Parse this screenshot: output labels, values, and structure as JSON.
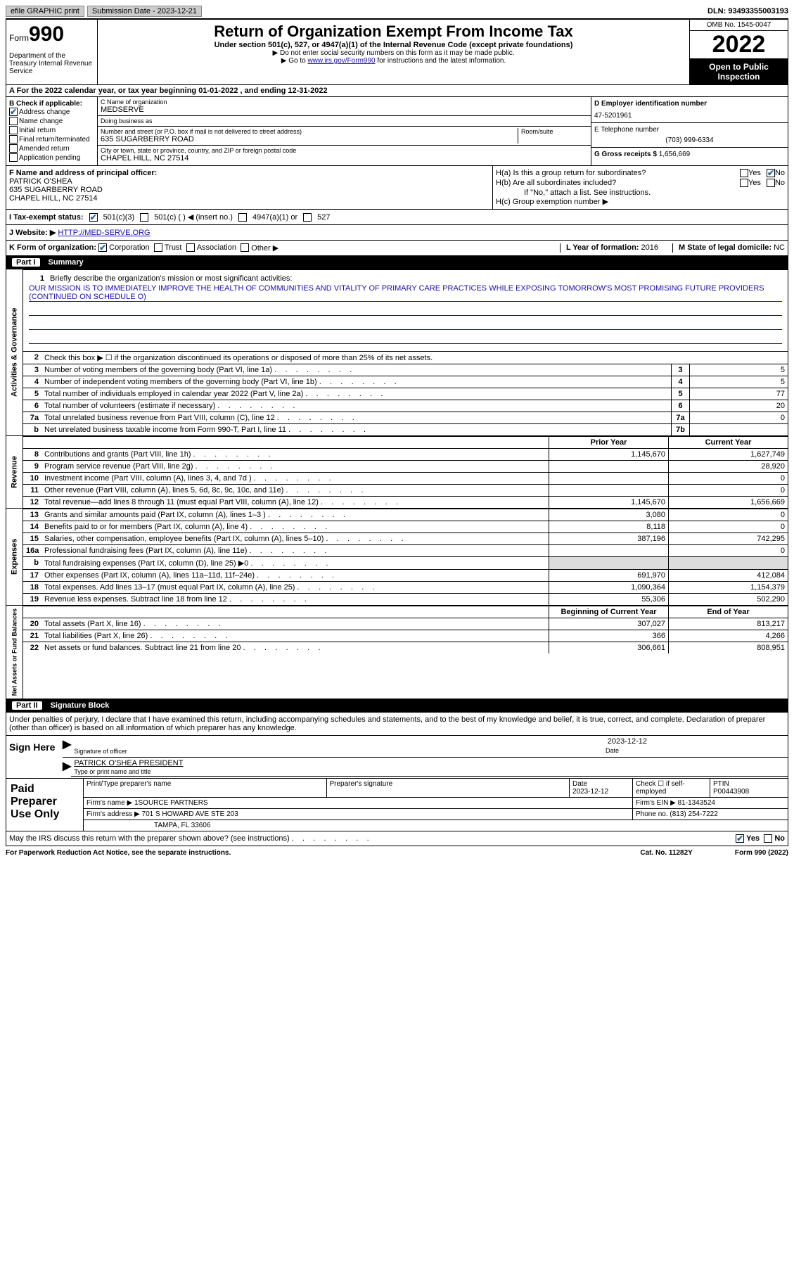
{
  "top": {
    "efile": "efile GRAPHIC print",
    "sub_label": "Submission Date - 2023-12-21",
    "dln": "DLN: 93493355003193"
  },
  "header": {
    "form_small": "Form",
    "form_big": "990",
    "dept": "Department of the Treasury Internal Revenue Service",
    "title": "Return of Organization Exempt From Income Tax",
    "sub1": "Under section 501(c), 527, or 4947(a)(1) of the Internal Revenue Code (except private foundations)",
    "sub2": "▶ Do not enter social security numbers on this form as it may be made public.",
    "sub3_pre": "▶ Go to ",
    "sub3_link": "www.irs.gov/Form990",
    "sub3_post": " for instructions and the latest information.",
    "omb": "OMB No. 1545-0047",
    "year": "2022",
    "open": "Open to Public Inspection"
  },
  "a": {
    "text": "A For the 2022 calendar year, or tax year beginning 01-01-2022    , and ending 12-31-2022"
  },
  "b": {
    "title": "B Check if applicable:",
    "items": [
      "Address change",
      "Name change",
      "Initial return",
      "Final return/terminated",
      "Amended return",
      "Application pending"
    ],
    "checked": [
      true,
      false,
      false,
      false,
      false,
      false
    ]
  },
  "c": {
    "name_lbl": "C Name of organization",
    "name": "MEDSERVE",
    "dba_lbl": "Doing business as",
    "dba": "",
    "addr_lbl": "Number and street (or P.O. box if mail is not delivered to street address)",
    "room_lbl": "Room/suite",
    "addr": "635 SUGARBERRY ROAD",
    "city_lbl": "City or town, state or province, country, and ZIP or foreign postal code",
    "city": "CHAPEL HILL, NC  27514"
  },
  "d": {
    "ein_lbl": "D Employer identification number",
    "ein": "47-5201961",
    "tel_lbl": "E Telephone number",
    "tel": "(703) 999-6334",
    "gross_lbl": "G Gross receipts $",
    "gross": "1,656,669"
  },
  "f": {
    "lbl": "F Name and address of principal officer:",
    "name": "PATRICK O'SHEA",
    "addr1": "635 SUGARBERRY ROAD",
    "addr2": "CHAPEL HILL, NC  27514"
  },
  "h": {
    "a_lbl": "H(a)  Is this a group return for subordinates?",
    "b_lbl": "H(b)  Are all subordinates included?",
    "b_note": "If \"No,\" attach a list. See instructions.",
    "c_lbl": "H(c)  Group exemption number ▶",
    "yes": "Yes",
    "no": "No"
  },
  "i": {
    "lbl": "I   Tax-exempt status:",
    "o1": "501(c)(3)",
    "o2": "501(c) (  ) ◀ (insert no.)",
    "o3": "4947(a)(1) or",
    "o4": "527"
  },
  "j": {
    "lbl": "J  Website: ▶",
    "url": "HTTP://MED-SERVE.ORG"
  },
  "k": {
    "lbl": "K Form of organization:",
    "opts": [
      "Corporation",
      "Trust",
      "Association",
      "Other ▶"
    ],
    "l_lbl": "L Year of formation:",
    "l_val": "2016",
    "m_lbl": "M State of legal domicile:",
    "m_val": "NC"
  },
  "part1": {
    "pill": "Part I",
    "title": "Summary"
  },
  "mission": {
    "num": "1",
    "lbl": "Briefly describe the organization's mission or most significant activities:",
    "text": "OUR MISSION IS TO IMMEDIATELY IMPROVE THE HEALTH OF COMMUNITIES AND VITALITY OF PRIMARY CARE PRACTICES WHILE EXPOSING TOMORROW'S MOST PROMISING FUTURE PROVIDERS (CONTINUED ON SCHEDULE O)"
  },
  "gov": {
    "tab": "Activities & Governance",
    "l2": "Check this box ▶ ☐  if the organization discontinued its operations or disposed of more than 25% of its net assets.",
    "rows": [
      {
        "n": "3",
        "label": "Number of voting members of the governing body (Part VI, line 1a)",
        "box": "3",
        "val": "5"
      },
      {
        "n": "4",
        "label": "Number of independent voting members of the governing body (Part VI, line 1b)",
        "box": "4",
        "val": "5"
      },
      {
        "n": "5",
        "label": "Total number of individuals employed in calendar year 2022 (Part V, line 2a)",
        "box": "5",
        "val": "77"
      },
      {
        "n": "6",
        "label": "Total number of volunteers (estimate if necessary)",
        "box": "6",
        "val": "20"
      },
      {
        "n": "7a",
        "label": "Total unrelated business revenue from Part VIII, column (C), line 12",
        "box": "7a",
        "val": "0"
      },
      {
        "n": "b",
        "label": "Net unrelated business taxable income from Form 990-T, Part I, line 11",
        "box": "7b",
        "val": ""
      }
    ]
  },
  "rev": {
    "tab": "Revenue",
    "hdr_prior": "Prior Year",
    "hdr_curr": "Current Year",
    "rows": [
      {
        "n": "8",
        "label": "Contributions and grants (Part VIII, line 1h)",
        "p": "1,145,670",
        "c": "1,627,749"
      },
      {
        "n": "9",
        "label": "Program service revenue (Part VIII, line 2g)",
        "p": "",
        "c": "28,920"
      },
      {
        "n": "10",
        "label": "Investment income (Part VIII, column (A), lines 3, 4, and 7d )",
        "p": "",
        "c": "0"
      },
      {
        "n": "11",
        "label": "Other revenue (Part VIII, column (A), lines 5, 6d, 8c, 9c, 10c, and 11e)",
        "p": "",
        "c": "0"
      },
      {
        "n": "12",
        "label": "Total revenue—add lines 8 through 11 (must equal Part VIII, column (A), line 12)",
        "p": "1,145,670",
        "c": "1,656,669"
      }
    ]
  },
  "exp": {
    "tab": "Expenses",
    "rows": [
      {
        "n": "13",
        "label": "Grants and similar amounts paid (Part IX, column (A), lines 1–3 )",
        "p": "3,080",
        "c": "0"
      },
      {
        "n": "14",
        "label": "Benefits paid to or for members (Part IX, column (A), line 4)",
        "p": "8,118",
        "c": "0"
      },
      {
        "n": "15",
        "label": "Salaries, other compensation, employee benefits (Part IX, column (A), lines 5–10)",
        "p": "387,196",
        "c": "742,295"
      },
      {
        "n": "16a",
        "label": "Professional fundraising fees (Part IX, column (A), line 11e)",
        "p": "",
        "c": "0"
      },
      {
        "n": "b",
        "label": "Total fundraising expenses (Part IX, column (D), line 25) ▶0",
        "p": "GRAY",
        "c": "GRAY"
      },
      {
        "n": "17",
        "label": "Other expenses (Part IX, column (A), lines 11a–11d, 11f–24e)",
        "p": "691,970",
        "c": "412,084"
      },
      {
        "n": "18",
        "label": "Total expenses. Add lines 13–17 (must equal Part IX, column (A), line 25)",
        "p": "1,090,364",
        "c": "1,154,379"
      },
      {
        "n": "19",
        "label": "Revenue less expenses. Subtract line 18 from line 12",
        "p": "55,306",
        "c": "502,290"
      }
    ]
  },
  "net": {
    "tab": "Net Assets or Fund Balances",
    "hdr_beg": "Beginning of Current Year",
    "hdr_end": "End of Year",
    "rows": [
      {
        "n": "20",
        "label": "Total assets (Part X, line 16)",
        "p": "307,027",
        "c": "813,217"
      },
      {
        "n": "21",
        "label": "Total liabilities (Part X, line 26)",
        "p": "366",
        "c": "4,266"
      },
      {
        "n": "22",
        "label": "Net assets or fund balances. Subtract line 21 from line 20",
        "p": "306,661",
        "c": "808,951"
      }
    ]
  },
  "part2": {
    "pill": "Part II",
    "title": "Signature Block",
    "decl": "Under penalties of perjury, I declare that I have examined this return, including accompanying schedules and statements, and to the best of my knowledge and belief, it is true, correct, and complete. Declaration of preparer (other than officer) is based on all information of which preparer has any knowledge."
  },
  "sign": {
    "left": "Sign Here",
    "sig_lbl": "Signature of officer",
    "date_lbl": "Date",
    "date": "2023-12-12",
    "name": "PATRICK O'SHEA  PRESIDENT",
    "name_lbl": "Type or print name and title"
  },
  "prep": {
    "left": "Paid Preparer Use Only",
    "r1": {
      "c1": "Print/Type preparer's name",
      "c2": "Preparer's signature",
      "c3": "Date",
      "c3v": "2023-12-12",
      "c4": "Check ☐ if self-employed",
      "c5": "PTIN",
      "c5v": "P00443908"
    },
    "r2": {
      "lbl": "Firm's name    ▶",
      "val": "1SOURCE PARTNERS",
      "ein_lbl": "Firm's EIN ▶",
      "ein": "81-1343524"
    },
    "r3": {
      "lbl": "Firm's address ▶",
      "val": "701 S HOWARD AVE STE 203",
      "ph_lbl": "Phone no.",
      "ph": "(813) 254-7222"
    },
    "r4": {
      "val": "TAMPA, FL  33606"
    }
  },
  "may": {
    "q": "May the IRS discuss this return with the preparer shown above? (see instructions)",
    "yes": "Yes",
    "no": "No"
  },
  "footer": {
    "left": "For Paperwork Reduction Act Notice, see the separate instructions.",
    "mid": "Cat. No. 11282Y",
    "right": "Form 990 (2022)"
  }
}
